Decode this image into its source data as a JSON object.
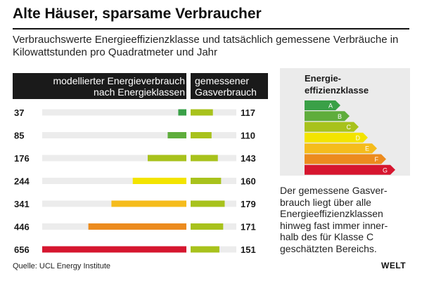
{
  "title": "Alte Häuser, sparsame Verbraucher",
  "subtitle": "Verbrauchswerte Energieeffizienzklasse und tatsächlich gemessene Verbräuche in Kilowattstunden pro Quadratmeter und Jahr",
  "chart_data": {
    "type": "bar",
    "title": "Alte Häuser, sparsame Verbraucher",
    "unit": "kWh pro Quadratmeter und Jahr",
    "series": [
      {
        "name": "modellierter Energieverbrauch nach Energieklassen",
        "header_lines": [
          "modellierter Energieverbrauch",
          "nach Energieklassen"
        ],
        "values": [
          37,
          85,
          176,
          244,
          341,
          446,
          656
        ],
        "colors": [
          "#3aa047",
          "#5fad3c",
          "#a8c21c",
          "#f3e400",
          "#f5bc1c",
          "#ec8b1e",
          "#d6162f"
        ],
        "direction": "right-to-left",
        "xlim": [
          0,
          656
        ]
      },
      {
        "name": "gemessener Gasverbrauch",
        "header_lines": [
          "gemessener",
          "Gasverbrauch"
        ],
        "values": [
          117,
          110,
          143,
          160,
          179,
          171,
          151
        ],
        "color": "#a8c21c",
        "direction": "left-to-right",
        "xlim": [
          0,
          240
        ]
      }
    ],
    "categories": [
      "A",
      "B",
      "C",
      "D",
      "E",
      "F",
      "G"
    ],
    "legend": {
      "title_lines": [
        "Energie-",
        "effizienzklasse"
      ],
      "classes": [
        {
          "label": "A",
          "color": "#3aa047"
        },
        {
          "label": "B",
          "color": "#5fad3c"
        },
        {
          "label": "C",
          "color": "#a8c21c"
        },
        {
          "label": "D",
          "color": "#f3e400"
        },
        {
          "label": "E",
          "color": "#f5bc1c"
        },
        {
          "label": "F",
          "color": "#ec8b1e"
        },
        {
          "label": "G",
          "color": "#d6162f"
        }
      ]
    }
  },
  "note": "Der gemessene Gasverbrauch liegt über alle Energieeffizienzklassen hinweg fast immer innerhalb des für Klasse C geschätzten Bereichs.",
  "note_lines": [
    "Der gemessene Gasver-",
    "brauch liegt über alle",
    "Energieeffizienzklassen",
    "hinweg fast immer inner-",
    "halb des für Klasse C",
    "geschätzten Bereichs."
  ],
  "source": "Quelle: UCL Energy Institute",
  "logo": "WELT"
}
